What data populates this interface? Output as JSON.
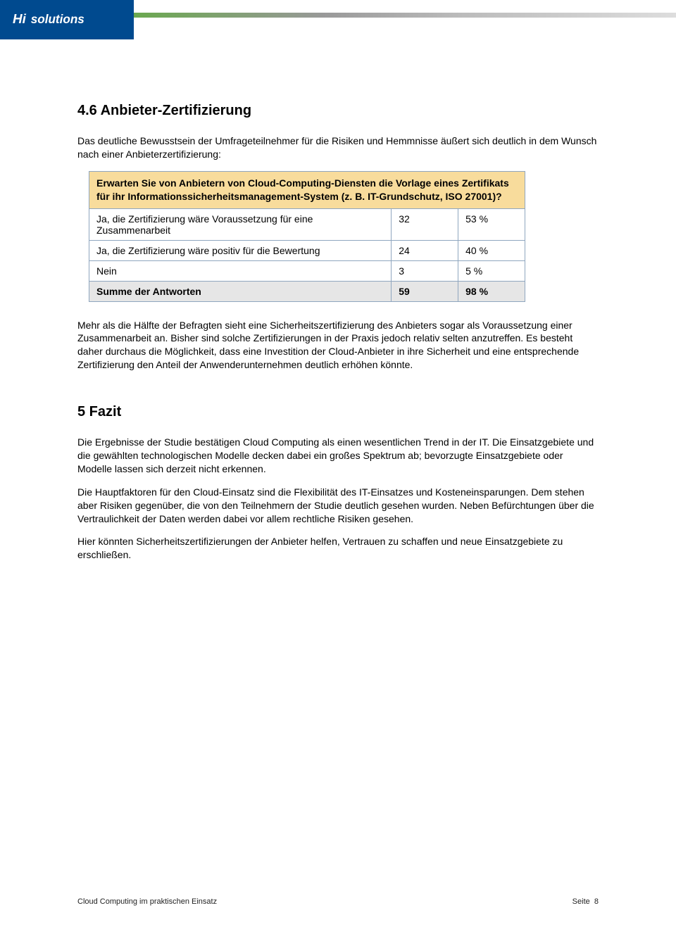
{
  "logo": {
    "text": "Hisolutions"
  },
  "section_heading": "4.6   Anbieter-Zertifizierung",
  "intro_paragraph": "Das deutliche Bewusstsein der Umfrageteilnehmer für die Risiken und Hemmnisse äußert sich deutlich in dem Wunsch nach einer Anbieterzertifizierung:",
  "table": {
    "question": "Erwarten Sie von Anbietern von Cloud-Computing-Diensten die Vorlage eines Zertifikats für ihr Informationssicherheitsmanagement-System (z. B. IT-Grundschutz, ISO 27001)?",
    "rows": [
      {
        "label": "Ja, die Zertifizierung wäre Voraussetzung für eine Zusammenarbeit",
        "count": "32",
        "pct": "53 %"
      },
      {
        "label": "Ja, die Zertifizierung wäre positiv für die Bewertung",
        "count": "24",
        "pct": "40 %"
      },
      {
        "label": "Nein",
        "count": "3",
        "pct": "5 %"
      }
    ],
    "sum": {
      "label": "Summe der Antworten",
      "count": "59",
      "pct": "98 %"
    },
    "header_bg": "#f8dc9c",
    "sum_bg": "#e6e6e6",
    "border_color": "#8fa6bf"
  },
  "post_table_paragraph": "Mehr als die Hälfte der Befragten sieht eine Sicherheitszertifizierung des Anbieters sogar als Voraussetzung einer Zusammenarbeit an. Bisher sind solche Zertifizierungen in der Praxis jedoch relativ selten anzutreffen. Es besteht daher durchaus die Möglichkeit, dass eine Investition der Cloud-Anbieter in ihre Sicherheit und eine entsprechende Zertifizierung den Anteil der Anwenderunternehmen deutlich erhöhen könnte.",
  "fazit_heading": "5   Fazit",
  "fazit_paragraphs": [
    "Die Ergebnisse der Studie bestätigen Cloud Computing als einen wesentlichen Trend in der IT. Die Einsatzgebiete und die gewählten technologischen Modelle decken dabei ein großes Spektrum ab; bevorzugte Einsatzgebiete oder Modelle lassen sich derzeit nicht erkennen.",
    "Die Hauptfaktoren für den Cloud-Einsatz sind die Flexibilität des IT-Einsatzes und Kosteneinsparungen. Dem stehen aber Risiken gegenüber, die von den Teilnehmern der Studie deutlich gesehen wurden. Neben Befürchtungen über die Vertraulichkeit der Daten werden dabei vor allem rechtliche Risiken gesehen.",
    "Hier könnten Sicherheitszertifizierungen der Anbieter helfen, Vertrauen zu schaffen und neue Einsatzgebiete zu erschließen."
  ],
  "footer": {
    "left": "Cloud Computing im praktischen Einsatz",
    "right_label": "Seite",
    "right_num": "8"
  }
}
